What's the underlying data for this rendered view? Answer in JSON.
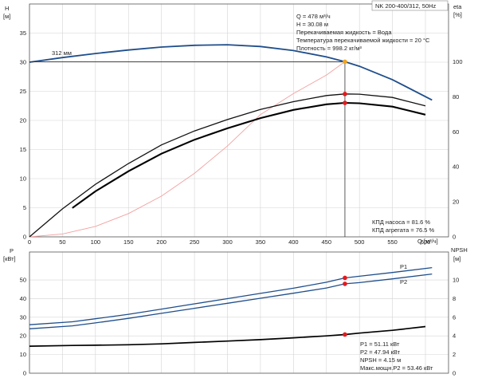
{
  "chart_data": [
    {
      "type": "line",
      "panel": "head-efficiency",
      "title_box": "NK 200-400/312, 50Hz",
      "xlabel": "Q [м³/ч]",
      "xlim": [
        0,
        635
      ],
      "x_ticks": [
        0,
        50,
        100,
        150,
        200,
        250,
        300,
        350,
        400,
        450,
        500,
        550,
        600
      ],
      "left_axis": {
        "label_top": "H",
        "label_unit": "[м]",
        "ylim": [
          0,
          40
        ],
        "ticks": [
          0,
          5,
          10,
          15,
          20,
          25,
          30,
          35
        ]
      },
      "right_axis": {
        "label_top": "eta",
        "label_unit": "[%]",
        "ylim": [
          0,
          133
        ],
        "ticks": [
          0,
          20,
          40,
          60,
          80,
          100
        ]
      },
      "grid": true,
      "duty_point": {
        "q": 478,
        "h": 30.08
      },
      "impeller_label": "312 мм",
      "info_lines": [
        "Q = 478 м³/ч",
        "H = 30.08 м",
        "Перекачиваемая жидкость = Вода",
        "Температура перекачиваемой жидкости = 20 °C",
        "Плотность = 998.2 кг/м³"
      ],
      "eff_lines": [
        "КПД насоса = 81.6 %",
        "КПД агрегата = 76.5 %"
      ],
      "series": [
        {
          "role": "head",
          "axis": "left",
          "color": "#1f4e8c",
          "x": [
            0,
            50,
            100,
            150,
            200,
            250,
            300,
            350,
            400,
            450,
            478,
            500,
            550,
            610
          ],
          "y": [
            30.0,
            30.8,
            31.5,
            32.1,
            32.6,
            32.9,
            33.0,
            32.7,
            32.0,
            30.9,
            30.08,
            29.3,
            27.0,
            23.5
          ]
        },
        {
          "role": "system-curve",
          "axis": "left",
          "color": "#f2a0a0",
          "x": [
            0,
            50,
            100,
            150,
            200,
            250,
            300,
            350,
            400,
            450,
            478
          ],
          "y": [
            0,
            0.5,
            1.8,
            4.0,
            7.0,
            10.9,
            15.6,
            21.0,
            24.6,
            27.8,
            30.08
          ]
        },
        {
          "role": "pump-efficiency",
          "axis": "right",
          "color": "#111111",
          "x": [
            0,
            50,
            100,
            150,
            200,
            250,
            300,
            350,
            400,
            450,
            478,
            500,
            550,
            600
          ],
          "y": [
            0,
            16.0,
            30.0,
            41.9,
            52.5,
            60.5,
            67.0,
            72.8,
            77.2,
            80.7,
            81.6,
            81.5,
            79.6,
            74.8
          ]
        },
        {
          "role": "unit-efficiency",
          "axis": "right",
          "color": "#000000",
          "x": [
            65,
            100,
            150,
            200,
            250,
            300,
            350,
            400,
            450,
            478,
            500,
            550,
            600
          ],
          "y": [
            16.5,
            26.0,
            37.5,
            47.5,
            55.5,
            62.0,
            67.8,
            72.5,
            75.7,
            76.5,
            76.3,
            74.4,
            69.8
          ]
        }
      ],
      "markers": [
        {
          "x": 478,
          "y": 30.08,
          "axis": "left",
          "color": "#f2a51a"
        },
        {
          "x": 478,
          "y": 81.6,
          "axis": "right",
          "color": "#e41a1c"
        },
        {
          "x": 478,
          "y": 76.5,
          "axis": "right",
          "color": "#e41a1c"
        }
      ]
    },
    {
      "type": "line",
      "panel": "power-npsh",
      "xlim": [
        0,
        635
      ],
      "left_axis": {
        "label_top": "P",
        "label_unit": "[кВт]",
        "ylim": [
          0,
          65
        ],
        "ticks": [
          0,
          10,
          20,
          30,
          40,
          50
        ]
      },
      "right_axis": {
        "label_top": "NPSH",
        "label_unit": "[м]",
        "ylim": [
          0,
          13
        ],
        "ticks": [
          0,
          2,
          4,
          6,
          8,
          10
        ]
      },
      "grid": true,
      "info_lines": [
        "P1 = 51.11 кВт",
        "P2 = 47.94 кВт",
        "NPSH = 4.15 м",
        "Макс.мощн.P2 = 53.46 кВт"
      ],
      "series": [
        {
          "role": "P1",
          "name": "P1",
          "axis": "left",
          "color": "#1f4e8c",
          "x": [
            0,
            65,
            100,
            150,
            200,
            250,
            300,
            350,
            400,
            450,
            478,
            500,
            550,
            610
          ],
          "y": [
            26.0,
            27.6,
            29.2,
            31.6,
            34.4,
            37.2,
            40.0,
            42.8,
            45.6,
            48.8,
            51.11,
            52.0,
            54.0,
            56.6
          ]
        },
        {
          "role": "P2",
          "name": "P2",
          "axis": "left",
          "color": "#1f4e8c",
          "x": [
            0,
            65,
            100,
            150,
            200,
            250,
            300,
            350,
            400,
            450,
            478,
            500,
            550,
            610
          ],
          "y": [
            23.8,
            25.4,
            27.0,
            29.4,
            32.1,
            34.8,
            37.5,
            40.2,
            42.9,
            45.7,
            47.94,
            48.6,
            50.6,
            53.2
          ]
        },
        {
          "role": "NPSH",
          "axis": "right",
          "color": "#000000",
          "x": [
            0,
            65,
            100,
            150,
            200,
            250,
            300,
            350,
            400,
            450,
            478,
            500,
            550,
            600
          ],
          "y": [
            2.9,
            2.98,
            3.0,
            3.05,
            3.15,
            3.3,
            3.45,
            3.6,
            3.8,
            4.0,
            4.15,
            4.3,
            4.6,
            5.0
          ]
        }
      ],
      "markers": [
        {
          "x": 478,
          "y": 51.11,
          "axis": "left",
          "color": "#e41a1c"
        },
        {
          "x": 478,
          "y": 47.94,
          "axis": "left",
          "color": "#e41a1c"
        },
        {
          "x": 478,
          "y": 4.15,
          "axis": "right",
          "color": "#e41a1c"
        }
      ]
    }
  ]
}
